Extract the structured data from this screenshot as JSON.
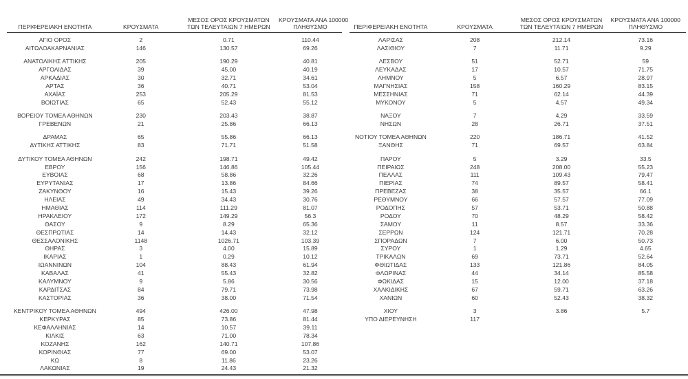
{
  "page": {
    "background": "#ffffff",
    "text_color": "#3a3a3a",
    "header_rule_color": "#1b1b1b",
    "bottom_rule_color": "#6e6e6e"
  },
  "chart_data": [
    {
      "type": "table",
      "title": "",
      "headers": [
        {
          "line1": "ΠΕΡΙΦΕΡΕΙΑΚΗ ΕΝΟΤΗΤΑ",
          "line2": ""
        },
        {
          "line1": "ΚΡΟΥΣΜΑΤΑ",
          "line2": ""
        },
        {
          "line1": "ΜΕΣΟΣ ΟΡΟΣ ΚΡΟΥΣΜΑΤΩΝ",
          "line2": "ΤΩΝ ΤΕΛΕΥΤΑΙΩΝ 7 ΗΜΕΡΩΝ"
        },
        {
          "line1": "ΚΡΟΥΣΜΑΤΑ ΑΝΑ 100000",
          "line2": "ΠΛΗΘΥΣΜΟ"
        }
      ],
      "rows": [
        [
          "ΑΓΙΟ ΟΡΟΣ",
          "2",
          "0.71",
          "110.44"
        ],
        [
          "ΑΙΤΩΛΟΑΚΑΡΝΑΝΙΑΣ",
          "146",
          "130.57",
          "69.26"
        ],
        null,
        [
          "ΑΝΑΤΟΛΙΚΗΣ ΑΤΤΙΚΗΣ",
          "205",
          "190.29",
          "40.81"
        ],
        [
          "ΑΡΓΟΛΙΔΑΣ",
          "39",
          "45.00",
          "40.19"
        ],
        [
          "ΑΡΚΑΔΙΑΣ",
          "30",
          "32.71",
          "34.61"
        ],
        [
          "ΑΡΤΑΣ",
          "36",
          "40.71",
          "53.04"
        ],
        [
          "ΑΧΑΪΑΣ",
          "253",
          "205.29",
          "81.53"
        ],
        [
          "ΒΟΙΩΤΙΑΣ",
          "65",
          "52.43",
          "55.12"
        ],
        null,
        [
          "ΒΟΡΕΙΟΥ ΤΟΜΕΑ ΑΘΗΝΩΝ",
          "230",
          "203.43",
          "38.87"
        ],
        [
          "ΓΡΕΒΕΝΩΝ",
          "21",
          "25.86",
          "66.13"
        ],
        null,
        [
          "ΔΡΑΜΑΣ",
          "65",
          "55.86",
          "66.13"
        ],
        [
          "ΔΥΤΙΚΗΣ ΑΤΤΙΚΗΣ",
          "83",
          "71.71",
          "51.58"
        ],
        null,
        [
          "ΔΥΤΙΚΟΥ ΤΟΜΕΑ ΑΘΗΝΩΝ",
          "242",
          "198.71",
          "49.42"
        ],
        [
          "ΕΒΡΟΥ",
          "156",
          "146.86",
          "105.44"
        ],
        [
          "ΕΥΒΟΙΑΣ",
          "68",
          "58.86",
          "32.26"
        ],
        [
          "ΕΥΡΥΤΑΝΙΑΣ",
          "17",
          "13.86",
          "84.66"
        ],
        [
          "ΖΑΚΥΝΘΟΥ",
          "16",
          "15.43",
          "39.26"
        ],
        [
          "ΗΛΕΙΑΣ",
          "49",
          "34.43",
          "30.76"
        ],
        [
          "ΗΜΑΘΙΑΣ",
          "114",
          "111.29",
          "81.07"
        ],
        [
          "ΗΡΑΚΛΕΙΟΥ",
          "172",
          "149.29",
          "56.3"
        ],
        [
          "ΘΑΣΟΥ",
          "9",
          "8.29",
          "65.36"
        ],
        [
          "ΘΕΣΠΡΩΤΙΑΣ",
          "14",
          "14.43",
          "32.12"
        ],
        [
          "ΘΕΣΣΑΛΟΝΙΚΗΣ",
          "1148",
          "1026.71",
          "103.39"
        ],
        [
          "ΘΗΡΑΣ",
          "3",
          "4.00",
          "15.89"
        ],
        [
          "ΙΚΑΡΙΑΣ",
          "1",
          "0.29",
          "10.12"
        ],
        [
          "ΙΩΑΝΝΙΝΩΝ",
          "104",
          "88.43",
          "61.94"
        ],
        [
          "ΚΑΒΑΛΑΣ",
          "41",
          "55.43",
          "32.82"
        ],
        [
          "ΚΑΛΥΜΝΟΥ",
          "9",
          "5.86",
          "30.56"
        ],
        [
          "ΚΑΡΔΙΤΣΑΣ",
          "84",
          "79.71",
          "73.98"
        ],
        [
          "ΚΑΣΤΟΡΙΑΣ",
          "36",
          "38.00",
          "71.54"
        ],
        null,
        [
          "ΚΕΝΤΡΙΚΟΥ ΤΟΜΕΑ ΑΘΗΝΩΝ",
          "494",
          "426.00",
          "47.98"
        ],
        [
          "ΚΕΡΚΥΡΑΣ",
          "85",
          "73.86",
          "81.44"
        ],
        [
          "ΚΕΦΑΛΛΗΝΙΑΣ",
          "14",
          "10.57",
          "39.11"
        ],
        [
          "ΚΙΛΚΙΣ",
          "63",
          "71.00",
          "78.34"
        ],
        [
          "ΚΟΖΑΝΗΣ",
          "162",
          "140.71",
          "107.86"
        ],
        [
          "ΚΟΡΙΝΘΙΑΣ",
          "77",
          "69.00",
          "53.07"
        ],
        [
          "ΚΩ",
          "8",
          "11.86",
          "23.26"
        ],
        [
          "ΛΑΚΩΝΙΑΣ",
          "19",
          "24.43",
          "21.32"
        ]
      ]
    },
    {
      "type": "table",
      "title": "",
      "headers": [
        {
          "line1": "ΠΕΡΙΦΕΡΕΙΑΚΗ ΕΝΟΤΗΤΑ",
          "line2": ""
        },
        {
          "line1": "ΚΡΟΥΣΜΑΤΑ",
          "line2": ""
        },
        {
          "line1": "ΜΕΣΟΣ ΟΡΟΣ ΚΡΟΥΣΜΑΤΩΝ",
          "line2": "ΤΩΝ ΤΕΛΕΥΤΑΙΩΝ 7 ΗΜΕΡΩΝ"
        },
        {
          "line1": "ΚΡΟΥΣΜΑΤΑ ΑΝΑ 100000",
          "line2": "ΠΛΗΘΥΣΜΟ"
        }
      ],
      "rows": [
        [
          "ΛΑΡΙΣΑΣ",
          "208",
          "212.14",
          "73.16"
        ],
        [
          "ΛΑΣΙΘΙΟΥ",
          "7",
          "11.71",
          "9.29"
        ],
        null,
        [
          "ΛΕΣΒΟΥ",
          "51",
          "52.71",
          "59"
        ],
        [
          "ΛΕΥΚΑΔΑΣ",
          "17",
          "10.57",
          "71.75"
        ],
        [
          "ΛΗΜΝΟΥ",
          "5",
          "6.57",
          "28.97"
        ],
        [
          "ΜΑΓΝΗΣΙΑΣ",
          "158",
          "160.29",
          "83.15"
        ],
        [
          "ΜΕΣΣΗΝΙΑΣ",
          "71",
          "62.14",
          "44.39"
        ],
        [
          "ΜΥΚΟΝΟΥ",
          "5",
          "4.57",
          "49.34"
        ],
        null,
        [
          "ΝΑΞΟΥ",
          "7",
          "4.29",
          "33.59"
        ],
        [
          "ΝΗΣΩΝ",
          "28",
          "26.71",
          "37.51"
        ],
        null,
        [
          "ΝΟΤΙΟΥ ΤΟΜΕΑ ΑΘΗΝΩΝ",
          "220",
          "186.71",
          "41.52"
        ],
        [
          "ΞΑΝΘΗΣ",
          "71",
          "69.57",
          "63.84"
        ],
        null,
        [
          "ΠΑΡΟΥ",
          "5",
          "3.29",
          "33.5"
        ],
        [
          "ΠΕΙΡΑΙΩΣ",
          "248",
          "208.00",
          "55.23"
        ],
        [
          "ΠΕΛΛΑΣ",
          "111",
          "109.43",
          "79.47"
        ],
        [
          "ΠΙΕΡΙΑΣ",
          "74",
          "89.57",
          "58.41"
        ],
        [
          "ΠΡΕΒΕΖΑΣ",
          "38",
          "35.57",
          "66.1"
        ],
        [
          "ΡΕΘΥΜΝΟΥ",
          "66",
          "57.57",
          "77.09"
        ],
        [
          "ΡΟΔΟΠΗΣ",
          "57",
          "53.71",
          "50.88"
        ],
        [
          "ΡΟΔΟΥ",
          "70",
          "48.29",
          "58.42"
        ],
        [
          "ΣΑΜΟΥ",
          "11",
          "8.57",
          "33.36"
        ],
        [
          "ΣΕΡΡΩΝ",
          "124",
          "121.71",
          "70.28"
        ],
        [
          "ΣΠΟΡΑΔΩΝ",
          "7",
          "6.00",
          "50.73"
        ],
        [
          "ΣΥΡΟΥ",
          "1",
          "1.29",
          "4.65"
        ],
        [
          "ΤΡΙΚΑΛΩΝ",
          "69",
          "73.71",
          "52.64"
        ],
        [
          "ΦΘΙΩΤΙΔΑΣ",
          "133",
          "121.86",
          "84.05"
        ],
        [
          "ΦΛΩΡΙΝΑΣ",
          "44",
          "34.14",
          "85.58"
        ],
        [
          "ΦΩΚΙΔΑΣ",
          "15",
          "12.00",
          "37.18"
        ],
        [
          "ΧΑΛΚΙΔΙΚΗΣ",
          "67",
          "59.71",
          "63.26"
        ],
        [
          "ΧΑΝΙΩΝ",
          "60",
          "52.43",
          "38.32"
        ],
        null,
        [
          "ΧΙΟΥ",
          "3",
          "3.86",
          "5.7"
        ],
        [
          "ΥΠΟ ΔΙΕΡΕΥΝΗΣΗ",
          "117",
          "",
          ""
        ]
      ]
    }
  ]
}
